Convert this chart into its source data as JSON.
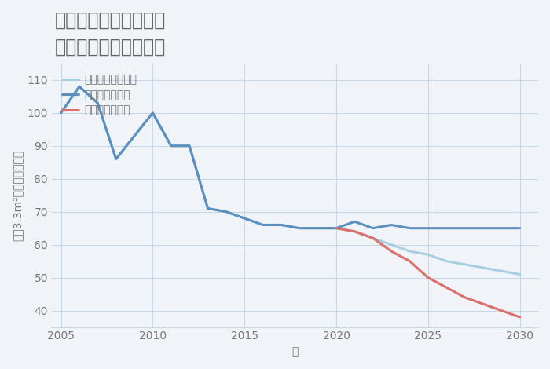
{
  "title": "岐阜県関市洞戸市場の\n中古戸建ての価格推移",
  "xlabel": "年",
  "ylabel": "坪（3.3m²）単価（万円）",
  "background_color": "#f0f4f8",
  "plot_background": "#f0f4f8",
  "good_scenario": {
    "label": "グッドシナリオ",
    "color": "#5a8fbf",
    "x": [
      2005,
      2006,
      2007,
      2008,
      2009,
      2010,
      2011,
      2012,
      2013,
      2014,
      2015,
      2016,
      2017,
      2018,
      2019,
      2020,
      2021,
      2022,
      2023,
      2024,
      2025,
      2026,
      2027,
      2028,
      2029,
      2030
    ],
    "y": [
      100,
      108,
      103,
      86,
      93,
      100,
      90,
      90,
      71,
      70,
      68,
      66,
      66,
      65,
      65,
      65,
      67,
      65,
      66,
      65,
      65,
      65,
      65,
      65,
      65,
      65
    ]
  },
  "bad_scenario": {
    "label": "バッドシナリオ",
    "color": "#d9706b",
    "x": [
      2020,
      2021,
      2022,
      2023,
      2024,
      2025,
      2026,
      2027,
      2028,
      2029,
      2030
    ],
    "y": [
      65,
      64,
      62,
      58,
      55,
      50,
      47,
      44,
      42,
      40,
      38
    ]
  },
  "normal_scenario": {
    "label": "ノーマルシナリオ",
    "color": "#a8cfe0",
    "x": [
      2005,
      2006,
      2007,
      2008,
      2009,
      2010,
      2011,
      2012,
      2013,
      2014,
      2015,
      2016,
      2017,
      2018,
      2019,
      2020,
      2021,
      2022,
      2023,
      2024,
      2025,
      2026,
      2027,
      2028,
      2029,
      2030
    ],
    "y": [
      100,
      108,
      103,
      86,
      93,
      100,
      90,
      90,
      71,
      70,
      68,
      66,
      66,
      65,
      65,
      65,
      64,
      62,
      60,
      58,
      57,
      55,
      54,
      53,
      52,
      51
    ]
  },
  "ylim": [
    35,
    115
  ],
  "xlim": [
    2004.5,
    2031
  ],
  "yticks": [
    40,
    50,
    60,
    70,
    80,
    90,
    100,
    110
  ],
  "xticks": [
    2005,
    2010,
    2015,
    2020,
    2025,
    2030
  ],
  "grid_color": "#c8d8e8",
  "title_color": "#666666",
  "tick_color": "#777777",
  "line_width": 2.2,
  "legend_fontsize": 10,
  "title_fontsize": 17,
  "label_fontsize": 10
}
